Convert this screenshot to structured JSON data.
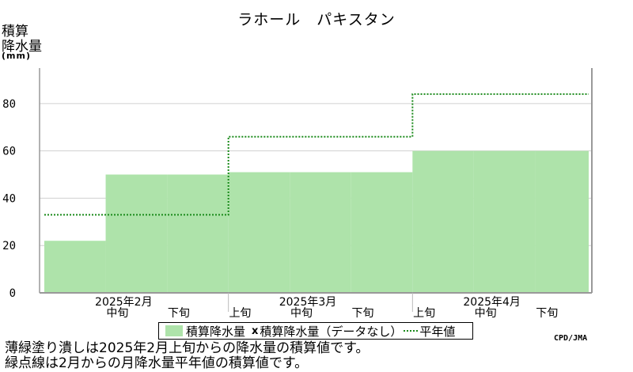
{
  "title": "ラホール　パキスタン",
  "ylabel_lines": [
    "積算",
    "降水量"
  ],
  "yunit": "(mm)",
  "legend": {
    "bar_label": "積算降水量",
    "x_marker": "x",
    "missing_label": "積算降水量（データなし）",
    "normal_label": "平年値"
  },
  "credit": "CPD/JMA",
  "notes": [
    "薄緑塗り潰しは2025年2月上旬からの降水量の積算値です。",
    "緑点線は2月からの月降水量平年値の積算値です。"
  ],
  "colors": {
    "fill": "#aee3aa",
    "normal_line": "#1a8a1a"
  },
  "chart_data": {
    "type": "area",
    "title": "ラホール　パキスタン",
    "ylabel": "積算 降水量 (mm)",
    "ylim": [
      0,
      95
    ],
    "yticks": [
      0,
      20,
      40,
      60,
      80
    ],
    "grid": true,
    "periods": [
      "2025年2月上旬",
      "2025年2月中旬",
      "2025年2月下旬",
      "2025年3月上旬",
      "2025年3月中旬",
      "2025年3月下旬",
      "2025年4月上旬",
      "2025年4月中旬",
      "2025年4月下旬"
    ],
    "xtick_labels": [
      "中旬",
      "下旬",
      "上旬",
      "中旬",
      "下旬",
      "上旬",
      "中旬",
      "下旬"
    ],
    "month_labels": [
      "2025年2月",
      "2025年3月",
      "2025年4月"
    ],
    "series": [
      {
        "name": "積算降水量",
        "values": [
          22,
          50,
          50,
          51,
          51,
          51,
          60,
          60,
          60
        ]
      },
      {
        "name": "平年値",
        "values": [
          33,
          33,
          33,
          66,
          66,
          66,
          84,
          84,
          84
        ]
      }
    ]
  }
}
